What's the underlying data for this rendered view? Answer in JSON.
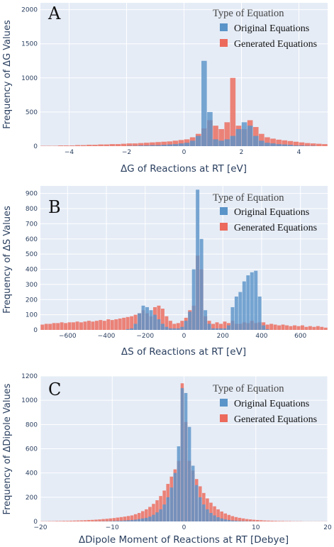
{
  "legend": {
    "title": "Type of Equation",
    "items": [
      "Original Equations",
      "Generated Equations"
    ]
  },
  "colors": {
    "original": "#5b94c8",
    "generated": "#ec6a5c",
    "plot_bg": "#e5ecf6",
    "grid": "#ffffff"
  },
  "chart_data": [
    {
      "type": "histogram",
      "panel": "A",
      "xlabel": "ΔG of Reactions at RT [eV]",
      "ylabel": "Frequency of ΔG Values",
      "xlim": [
        -5,
        5
      ],
      "ylim": [
        0,
        2100
      ],
      "xticks": [
        -4,
        -2,
        0,
        2,
        4
      ],
      "yticks": [
        0,
        500,
        1000,
        1500,
        2000
      ],
      "bin_start": -5,
      "bin_width": 0.2,
      "series": [
        {
          "name": "Original Equations",
          "values": [
            0,
            0,
            0,
            0,
            0,
            0,
            0,
            0,
            0,
            0,
            0,
            0,
            0,
            0,
            0,
            5,
            5,
            10,
            10,
            15,
            15,
            20,
            25,
            30,
            40,
            50,
            80,
            150,
            1250,
            500,
            100,
            80,
            100,
            150,
            250,
            350,
            300,
            150,
            80,
            50,
            40,
            30,
            25,
            20,
            10,
            10,
            5,
            5,
            0,
            0
          ]
        },
        {
          "name": "Generated Equations",
          "values": [
            5,
            5,
            5,
            10,
            10,
            10,
            15,
            15,
            20,
            20,
            25,
            25,
            30,
            30,
            35,
            40,
            40,
            45,
            50,
            55,
            60,
            65,
            70,
            80,
            90,
            100,
            130,
            180,
            260,
            380,
            300,
            250,
            350,
            1000,
            300,
            250,
            380,
            280,
            180,
            130,
            110,
            95,
            85,
            75,
            65,
            55,
            45,
            40,
            35,
            30
          ]
        }
      ]
    },
    {
      "type": "histogram",
      "panel": "B",
      "xlabel": "ΔS of Reactions at RT [eV]",
      "ylabel": "Frequency of ΔS Values",
      "xlim": [
        -740,
        740
      ],
      "ylim": [
        0,
        950
      ],
      "xticks": [
        -600,
        -400,
        -200,
        0,
        200,
        400,
        600
      ],
      "yticks": [
        0,
        100,
        200,
        300,
        400,
        500,
        600,
        700,
        800,
        900
      ],
      "bin_start": -740,
      "bin_width": 20,
      "series": [
        {
          "name": "Original Equations",
          "values": [
            0,
            0,
            0,
            0,
            0,
            0,
            0,
            0,
            0,
            0,
            0,
            0,
            0,
            0,
            0,
            0,
            0,
            0,
            0,
            0,
            0,
            0,
            5,
            10,
            40,
            110,
            160,
            150,
            130,
            100,
            70,
            40,
            20,
            10,
            10,
            10,
            20,
            60,
            120,
            400,
            925,
            600,
            130,
            40,
            10,
            10,
            10,
            10,
            30,
            150,
            220,
            250,
            320,
            360,
            380,
            390,
            220,
            30,
            5,
            0,
            0,
            0,
            0,
            0,
            0,
            0,
            0,
            0,
            0,
            0,
            0,
            0,
            0,
            0
          ]
        },
        {
          "name": "Generated Equations",
          "values": [
            35,
            40,
            40,
            45,
            45,
            50,
            45,
            50,
            50,
            55,
            50,
            55,
            60,
            55,
            60,
            65,
            60,
            70,
            65,
            70,
            75,
            80,
            85,
            90,
            100,
            110,
            130,
            110,
            90,
            150,
            160,
            140,
            90,
            60,
            40,
            45,
            60,
            80,
            130,
            160,
            490,
            400,
            90,
            60,
            40,
            50,
            40,
            55,
            45,
            60,
            40,
            40,
            50,
            45,
            60,
            45,
            50,
            50,
            35,
            40,
            35,
            30,
            35,
            30,
            25,
            30,
            25,
            30,
            20,
            25,
            20,
            25,
            20,
            15
          ]
        }
      ]
    },
    {
      "type": "histogram",
      "panel": "C",
      "xlabel": "ΔDipole Moment of Reactions at RT [Debye]",
      "ylabel": "Frequency of ΔDipole Values",
      "xlim": [
        -20,
        20
      ],
      "ylim": [
        0,
        1200
      ],
      "xticks": [
        -20,
        -10,
        0,
        10,
        20
      ],
      "yticks": [
        0,
        200,
        400,
        600,
        800,
        1000,
        1200
      ],
      "bin_start": -20,
      "bin_width": 0.5,
      "series": [
        {
          "name": "Original Equations",
          "values": [
            0,
            0,
            0,
            0,
            0,
            0,
            0,
            0,
            0,
            0,
            0,
            0,
            0,
            0,
            0,
            1,
            1,
            2,
            2,
            3,
            4,
            5,
            6,
            8,
            10,
            12,
            15,
            20,
            25,
            30,
            40,
            55,
            75,
            100,
            140,
            200,
            280,
            400,
            620,
            1100,
            1060,
            780,
            460,
            300,
            200,
            140,
            100,
            70,
            50,
            35,
            25,
            18,
            12,
            8,
            6,
            4,
            3,
            2,
            2,
            1,
            1,
            0,
            0,
            0,
            0,
            0,
            0,
            0,
            0,
            0,
            0,
            0,
            0,
            0,
            0,
            0,
            0,
            0,
            0,
            0
          ]
        },
        {
          "name": "Generated Equations",
          "values": [
            2,
            2,
            3,
            3,
            4,
            4,
            5,
            5,
            6,
            7,
            8,
            9,
            10,
            12,
            13,
            15,
            17,
            20,
            22,
            25,
            28,
            32,
            36,
            40,
            45,
            50,
            60,
            70,
            85,
            100,
            120,
            145,
            175,
            210,
            255,
            310,
            370,
            430,
            500,
            1140,
            820,
            500,
            420,
            350,
            290,
            235,
            190,
            155,
            125,
            100,
            82,
            66,
            54,
            44,
            36,
            30,
            25,
            20,
            17,
            14,
            12,
            10,
            8,
            7,
            6,
            5,
            4,
            4,
            3,
            3,
            2,
            2,
            2,
            1,
            1,
            1,
            1,
            1,
            1,
            1
          ]
        }
      ]
    }
  ]
}
